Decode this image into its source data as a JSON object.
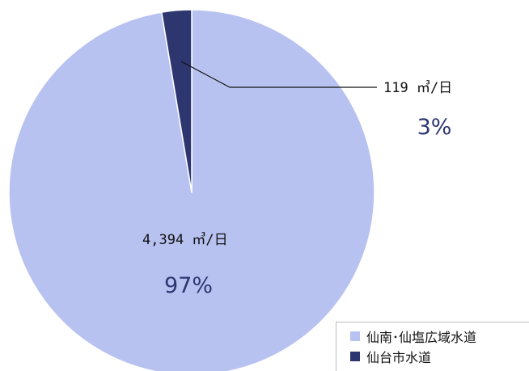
{
  "chart_data": {
    "type": "pie",
    "series": [
      {
        "name": "仙南･仙塩広域水道",
        "value": 4394,
        "value_label": "4,394 ㎥/日",
        "percent": 97,
        "percent_label": "97%",
        "color": "#b8c2f0"
      },
      {
        "name": "仙台市水道",
        "value": 119,
        "value_label": "119 ㎥/日",
        "percent": 3,
        "percent_label": "3%",
        "color": "#2e3670"
      }
    ],
    "start_angle": "12 o'clock",
    "direction": "counterclockwise",
    "legend_placement": "bottom-right",
    "label_color": "#2e3670"
  }
}
